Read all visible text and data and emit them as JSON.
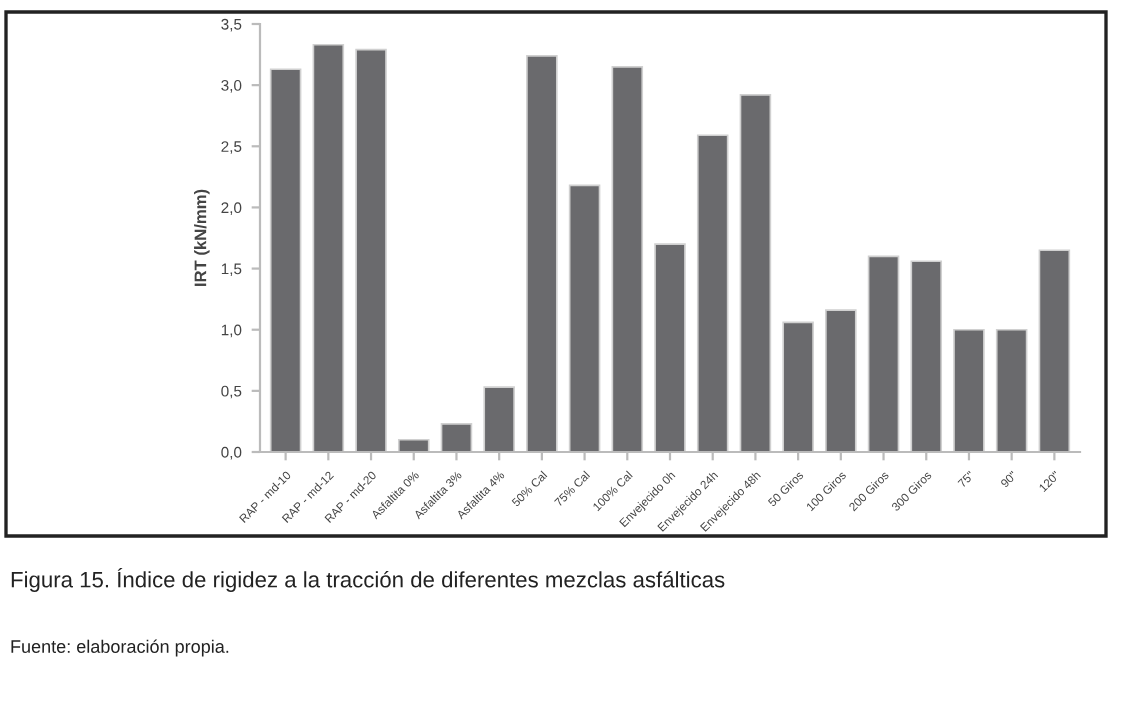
{
  "chart_data": {
    "type": "bar",
    "ylabel": "IRT (kN/mm)",
    "categories": [
      "RAP - md-10",
      "RAP - md-12",
      "RAP - md-20",
      "Asfaltita 0%",
      "Asfaltita 3%",
      "Asfaltita 4%",
      "50% Cal",
      "75% Cal",
      "100% Cal",
      "Envejecido 0h",
      "Envejecido 24h",
      "Envejecido 48h",
      "50 Giros",
      "100 Giros",
      "200 Giros",
      "300 Giros",
      "75\"",
      "90\"",
      "120\""
    ],
    "values": [
      3.13,
      3.33,
      3.29,
      0.1,
      0.23,
      0.53,
      3.24,
      2.18,
      3.15,
      1.7,
      2.59,
      2.92,
      1.06,
      1.16,
      1.6,
      1.56,
      1.0,
      1.0,
      1.65
    ],
    "color": "#6a6a6d",
    "ylim": [
      0,
      3.5
    ],
    "yticks": [
      {
        "value": 0,
        "label": "0,0"
      },
      {
        "value": 0.5,
        "label": "0,5"
      },
      {
        "value": 1,
        "label": "1,0"
      },
      {
        "value": 1.5,
        "label": "1,5"
      },
      {
        "value": 2,
        "label": "2,0"
      },
      {
        "value": 2.5,
        "label": "2,5"
      },
      {
        "value": 3,
        "label": "3,0"
      },
      {
        "value": 3.5,
        "label": "3,5"
      }
    ],
    "grid": false,
    "legend": false,
    "annotations": [
      "Figura 15. Índice de rigidez a la tracción de diferentes mezclas asfálticas",
      "Fuente: elaboración propia."
    ]
  }
}
